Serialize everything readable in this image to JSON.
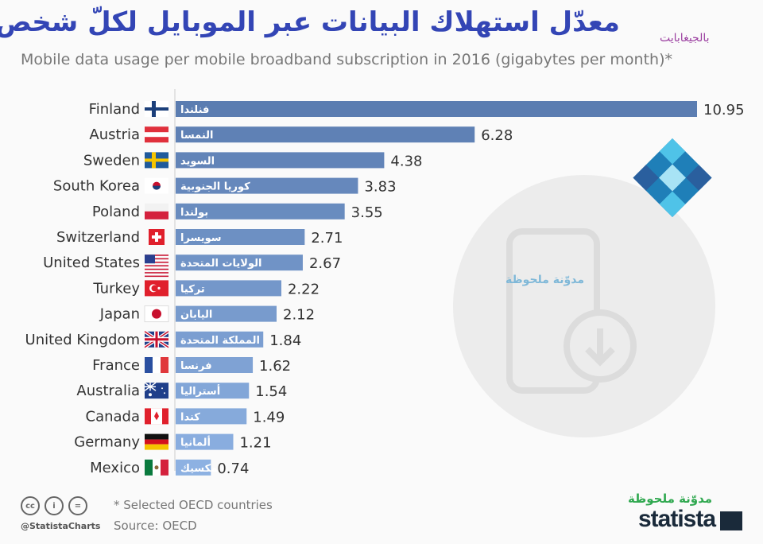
{
  "title_ar": "معدّل استهلاك البيانات عبر الموبايل لكلّ شخص شهريًّا",
  "unit_ar": "بالجيغابايت",
  "subtitle": "Mobile data usage per mobile broadband subscription in 2016 (gigabytes per month)*",
  "watermark": "مدوّنة ملحوظة",
  "footer": {
    "footnote": "* Selected OECD countries",
    "source": "Source: OECD",
    "handle": "@StatistaCharts",
    "cc_icons": [
      "cc",
      "i",
      "="
    ],
    "blog_name": "مدوّنة ملحوظة",
    "brand": "statista"
  },
  "colors": {
    "bar_dark": "#5b7db1",
    "bar_light": "#8db1e2",
    "title": "#3345b5"
  },
  "chart_data": {
    "type": "bar",
    "orientation": "horizontal",
    "title": "Mobile data usage per mobile broadband subscription in 2016 (gigabytes per month)*",
    "xlabel": "",
    "ylabel": "",
    "xlim": [
      0,
      11
    ],
    "categories": [
      "Finland",
      "Austria",
      "Sweden",
      "South Korea",
      "Poland",
      "Switzerland",
      "United States",
      "Turkey",
      "Japan",
      "United Kingdom",
      "France",
      "Australia",
      "Canada",
      "Germany",
      "Mexico"
    ],
    "categories_ar": [
      "فنلندا",
      "النمسا",
      "السويد",
      "كوريا الجنوبية",
      "بولندا",
      "سويسرا",
      "الولايات المتحدة",
      "تركيا",
      "اليابان",
      "المملكة المتحدة",
      "فرنسا",
      "أستراليا",
      "كندا",
      "ألمانيا",
      "المكسيك"
    ],
    "labels": [
      "10.95",
      "6.28",
      "4.38",
      "3.83",
      "3.55",
      "2.71",
      "2.67",
      "2.22",
      "2.12",
      "1.84",
      "1.62",
      "1.54",
      "1.49",
      "1.21",
      "0.74"
    ],
    "values": [
      10.95,
      6.28,
      4.38,
      3.83,
      3.55,
      2.71,
      2.67,
      2.22,
      2.12,
      1.84,
      1.62,
      1.54,
      1.49,
      1.21,
      0.74
    ]
  }
}
